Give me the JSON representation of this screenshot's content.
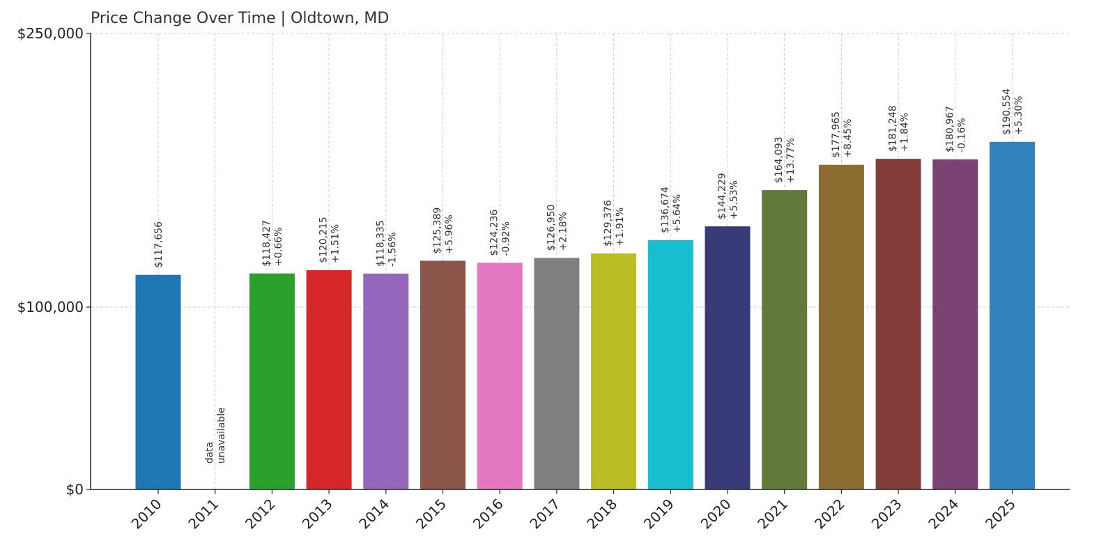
{
  "chart_data": {
    "type": "bar",
    "title": "Price Change Over Time | Oldtown, MD",
    "xlabel": "",
    "ylabel": "",
    "ylim": [
      0,
      250000
    ],
    "yticks": [
      {
        "value": 0,
        "label": "$0"
      },
      {
        "value": 100000,
        "label": "$100,000"
      },
      {
        "value": 250000,
        "label": "$250,000"
      }
    ],
    "grid": true,
    "categories": [
      "2010",
      "2011",
      "2012",
      "2013",
      "2014",
      "2015",
      "2016",
      "2017",
      "2018",
      "2019",
      "2020",
      "2021",
      "2022",
      "2023",
      "2024",
      "2025"
    ],
    "values": [
      117656,
      null,
      118427,
      120215,
      118335,
      125389,
      124236,
      126950,
      129376,
      136674,
      144229,
      164093,
      177965,
      181248,
      180967,
      190554
    ],
    "value_labels": [
      "$117,656",
      "",
      "$118,427",
      "$120,215",
      "$118,335",
      "$125,389",
      "$124,236",
      "$126,950",
      "$129,376",
      "$136,674",
      "$144,229",
      "$164,093",
      "$177,965",
      "$181,248",
      "$180,967",
      "$190,554"
    ],
    "change_labels": [
      "",
      "",
      "+0.66%",
      "+1.51%",
      "-1.56%",
      "+5.96%",
      "-0.92%",
      "+2.18%",
      "+1.91%",
      "+5.64%",
      "+5.53%",
      "+13.77%",
      "+8.45%",
      "+1.84%",
      "-0.16%",
      "+5.30%"
    ],
    "missing_label": [
      "data",
      "unavailable"
    ],
    "colors": [
      "#1f77b4",
      "#ffffff",
      "#2ca02c",
      "#d62728",
      "#9467bd",
      "#8c564b",
      "#e377c2",
      "#7f7f7f",
      "#bcbd22",
      "#17becf",
      "#393b79",
      "#637939",
      "#8c6d31",
      "#843c39",
      "#7b4173",
      "#3182bd"
    ]
  }
}
